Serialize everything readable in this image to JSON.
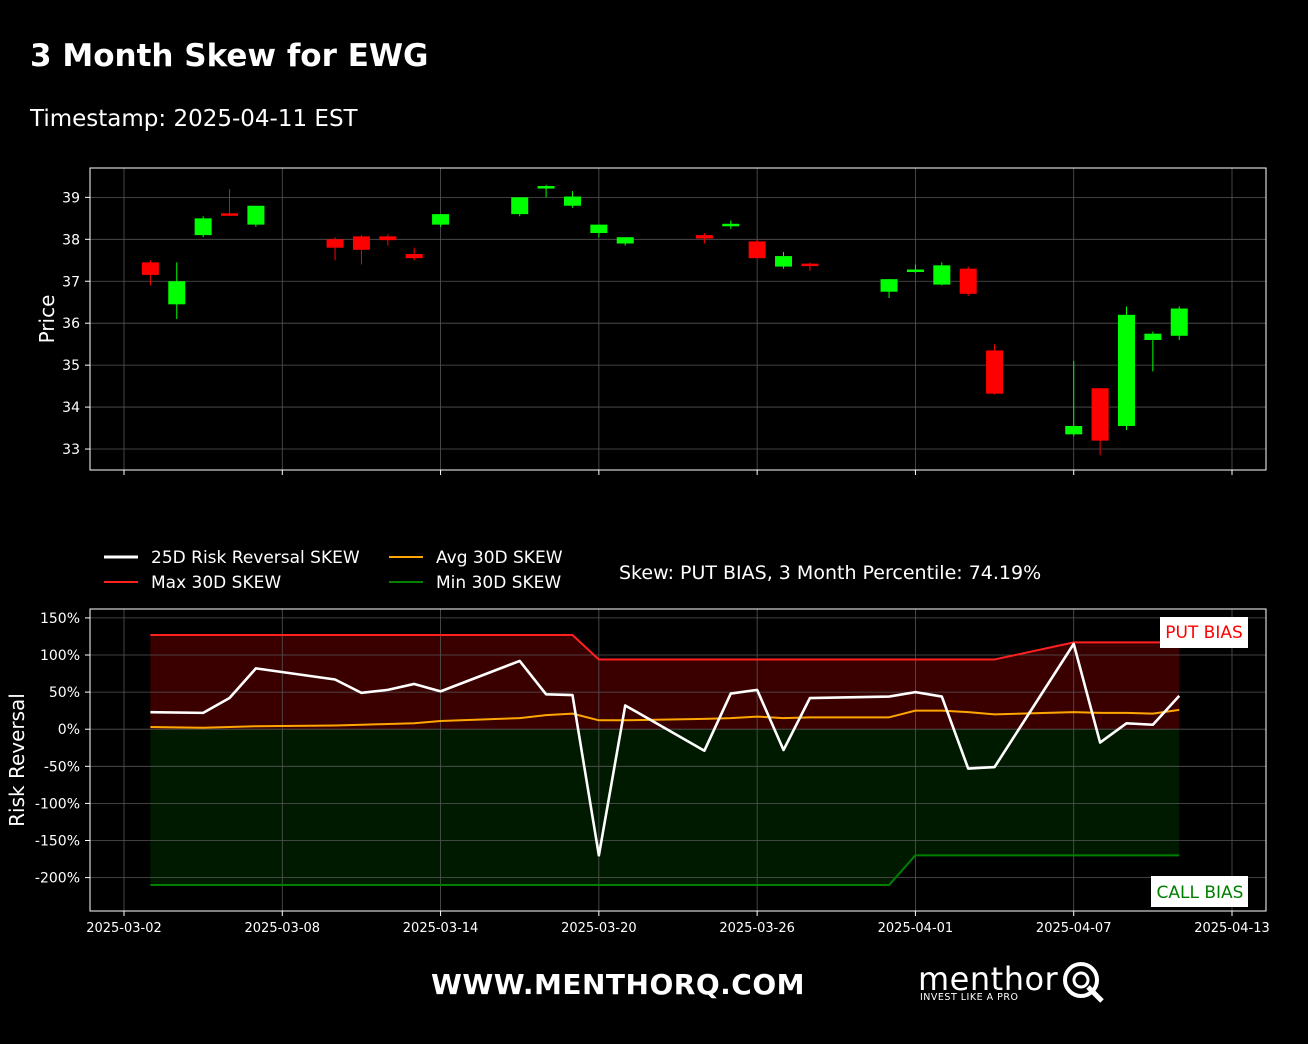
{
  "header": {
    "title": "3 Month Skew for EWG",
    "subtitle": "Timestamp: 2025-04-11 EST"
  },
  "colors": {
    "background": "#000000",
    "up": "#00ff00",
    "down": "#ff0000",
    "risk_reversal": "#ffffff",
    "max_skew": "#ff2020",
    "avg_skew": "#ffa500",
    "min_skew": "#008000",
    "put_fill": "#3a0000",
    "call_fill": "#001a00"
  },
  "chart_data": [
    {
      "type": "candlestick",
      "ylabel": "Price",
      "ylim": [
        32.5,
        39.7
      ],
      "yticks": [
        33,
        34,
        35,
        36,
        37,
        38,
        39
      ],
      "xlim": [
        "2025-03-02",
        "2025-04-13"
      ],
      "grid": true,
      "candles": [
        {
          "date": "2025-03-03",
          "open": 37.45,
          "high": 37.5,
          "low": 36.9,
          "close": 37.15
        },
        {
          "date": "2025-03-04",
          "open": 36.45,
          "high": 37.45,
          "low": 36.1,
          "close": 37.0
        },
        {
          "date": "2025-03-05",
          "open": 38.1,
          "high": 38.55,
          "low": 38.05,
          "close": 38.5
        },
        {
          "date": "2025-03-06",
          "open": 38.62,
          "high": 39.2,
          "low": 38.55,
          "close": 38.58
        },
        {
          "date": "2025-03-07",
          "open": 38.35,
          "high": 38.8,
          "low": 38.3,
          "close": 38.8
        },
        {
          "date": "2025-03-10",
          "open": 38.0,
          "high": 38.05,
          "low": 37.5,
          "close": 37.8
        },
        {
          "date": "2025-03-11",
          "open": 38.07,
          "high": 38.1,
          "low": 37.4,
          "close": 37.75
        },
        {
          "date": "2025-03-12",
          "open": 38.07,
          "high": 38.12,
          "low": 37.85,
          "close": 37.98
        },
        {
          "date": "2025-03-13",
          "open": 37.65,
          "high": 37.8,
          "low": 37.5,
          "close": 37.55
        },
        {
          "date": "2025-03-14",
          "open": 38.35,
          "high": 38.6,
          "low": 38.3,
          "close": 38.6
        },
        {
          "date": "2025-03-17",
          "open": 38.6,
          "high": 39.0,
          "low": 38.55,
          "close": 39.0
        },
        {
          "date": "2025-03-18",
          "open": 39.22,
          "high": 39.3,
          "low": 39.0,
          "close": 39.27
        },
        {
          "date": "2025-03-19",
          "open": 38.8,
          "high": 39.15,
          "low": 38.75,
          "close": 39.02
        },
        {
          "date": "2025-03-20",
          "open": 38.15,
          "high": 38.35,
          "low": 38.05,
          "close": 38.35
        },
        {
          "date": "2025-03-21",
          "open": 37.9,
          "high": 38.05,
          "low": 37.85,
          "close": 38.05
        },
        {
          "date": "2025-03-24",
          "open": 38.1,
          "high": 38.15,
          "low": 37.9,
          "close": 38.02
        },
        {
          "date": "2025-03-25",
          "open": 38.32,
          "high": 38.45,
          "low": 38.25,
          "close": 38.37
        },
        {
          "date": "2025-03-26",
          "open": 37.95,
          "high": 38.0,
          "low": 37.55,
          "close": 37.55
        },
        {
          "date": "2025-03-27",
          "open": 37.35,
          "high": 37.7,
          "low": 37.3,
          "close": 37.6
        },
        {
          "date": "2025-03-28",
          "open": 37.42,
          "high": 37.45,
          "low": 37.25,
          "close": 37.38
        },
        {
          "date": "2025-03-31",
          "open": 36.75,
          "high": 37.05,
          "low": 36.6,
          "close": 37.05
        },
        {
          "date": "2025-04-01",
          "open": 37.22,
          "high": 37.4,
          "low": 37.2,
          "close": 37.28
        },
        {
          "date": "2025-04-02",
          "open": 36.92,
          "high": 37.45,
          "low": 36.9,
          "close": 37.38
        },
        {
          "date": "2025-04-03",
          "open": 37.3,
          "high": 37.35,
          "low": 36.65,
          "close": 36.7
        },
        {
          "date": "2025-04-04",
          "open": 35.35,
          "high": 35.5,
          "low": 34.3,
          "close": 34.32
        },
        {
          "date": "2025-04-07",
          "open": 33.35,
          "high": 35.1,
          "low": 33.3,
          "close": 33.55
        },
        {
          "date": "2025-04-08",
          "open": 34.45,
          "high": 34.45,
          "low": 32.85,
          "close": 33.2
        },
        {
          "date": "2025-04-09",
          "open": 33.55,
          "high": 36.4,
          "low": 33.45,
          "close": 36.2
        },
        {
          "date": "2025-04-10",
          "open": 35.6,
          "high": 35.8,
          "low": 34.85,
          "close": 35.75
        },
        {
          "date": "2025-04-11",
          "open": 35.7,
          "high": 36.4,
          "low": 35.6,
          "close": 36.35
        }
      ]
    },
    {
      "type": "line",
      "ylabel": "Risk Reversal",
      "ylim": [
        -245,
        162
      ],
      "yticks": [
        150,
        100,
        50,
        0,
        -50,
        -100,
        -150,
        -200
      ],
      "ytick_labels": [
        "150%",
        "100%",
        "50%",
        "0%",
        "-50%",
        "-100%",
        "-150%",
        "-200%"
      ],
      "xlim": [
        "2025-03-02",
        "2025-04-13"
      ],
      "xtick_labels": [
        "2025-03-02",
        "2025-03-08",
        "2025-03-14",
        "2025-03-20",
        "2025-03-26",
        "2025-04-01",
        "2025-04-07",
        "2025-04-13"
      ],
      "grid": true,
      "legend": {
        "placement": "top-left",
        "entries": [
          "25D Risk Reversal SKEW",
          "Max 30D SKEW",
          "Avg 30D SKEW",
          "Min 30D SKEW"
        ]
      },
      "annotation": "Skew: PUT BIAS, 3 Month Percentile: 74.19%",
      "put_bias_label": "PUT BIAS",
      "call_bias_label": "CALL BIAS",
      "series": [
        {
          "name": "25D Risk Reversal SKEW",
          "x": [
            "2025-03-03",
            "2025-03-05",
            "2025-03-06",
            "2025-03-07",
            "2025-03-10",
            "2025-03-11",
            "2025-03-12",
            "2025-03-13",
            "2025-03-14",
            "2025-03-17",
            "2025-03-18",
            "2025-03-19",
            "2025-03-20",
            "2025-03-21",
            "2025-03-24",
            "2025-03-25",
            "2025-03-26",
            "2025-03-27",
            "2025-03-28",
            "2025-03-31",
            "2025-04-01",
            "2025-04-02",
            "2025-04-03",
            "2025-04-04",
            "2025-04-07",
            "2025-04-08",
            "2025-04-09",
            "2025-04-10",
            "2025-04-11"
          ],
          "y": [
            23,
            22,
            42,
            82,
            67,
            49,
            53,
            61,
            51,
            92,
            47,
            46,
            -170,
            32,
            -29,
            48,
            53,
            -28,
            42,
            44,
            50,
            44,
            -53,
            -51,
            115,
            -18,
            8,
            6,
            45
          ]
        },
        {
          "name": "Max 30D SKEW",
          "x": [
            "2025-03-03",
            "2025-03-19",
            "2025-03-20",
            "2025-04-04",
            "2025-04-07",
            "2025-04-11"
          ],
          "y": [
            127,
            127,
            94,
            94,
            117,
            117
          ]
        },
        {
          "name": "Avg 30D SKEW",
          "x": [
            "2025-03-03",
            "2025-03-05",
            "2025-03-06",
            "2025-03-07",
            "2025-03-10",
            "2025-03-11",
            "2025-03-12",
            "2025-03-13",
            "2025-03-14",
            "2025-03-17",
            "2025-03-18",
            "2025-03-19",
            "2025-03-20",
            "2025-03-21",
            "2025-03-24",
            "2025-03-25",
            "2025-03-26",
            "2025-03-27",
            "2025-03-28",
            "2025-03-31",
            "2025-04-01",
            "2025-04-02",
            "2025-04-03",
            "2025-04-04",
            "2025-04-07",
            "2025-04-08",
            "2025-04-09",
            "2025-04-10",
            "2025-04-11"
          ],
          "y": [
            3,
            2,
            3,
            4,
            5,
            6,
            7,
            8,
            11,
            15,
            19,
            21,
            12,
            12,
            14,
            15,
            17,
            15,
            16,
            16,
            25,
            25,
            23,
            20,
            23,
            22,
            22,
            21,
            26
          ]
        },
        {
          "name": "Min 30D SKEW",
          "x": [
            "2025-03-03",
            "2025-03-31",
            "2025-04-01",
            "2025-04-11"
          ],
          "y": [
            -210,
            -210,
            -170,
            -170
          ]
        }
      ]
    }
  ],
  "footer": {
    "url": "WWW.MENTHORQ.COM",
    "brand_name": "menthor",
    "brand_tagline": "INVEST LIKE A PRO"
  }
}
